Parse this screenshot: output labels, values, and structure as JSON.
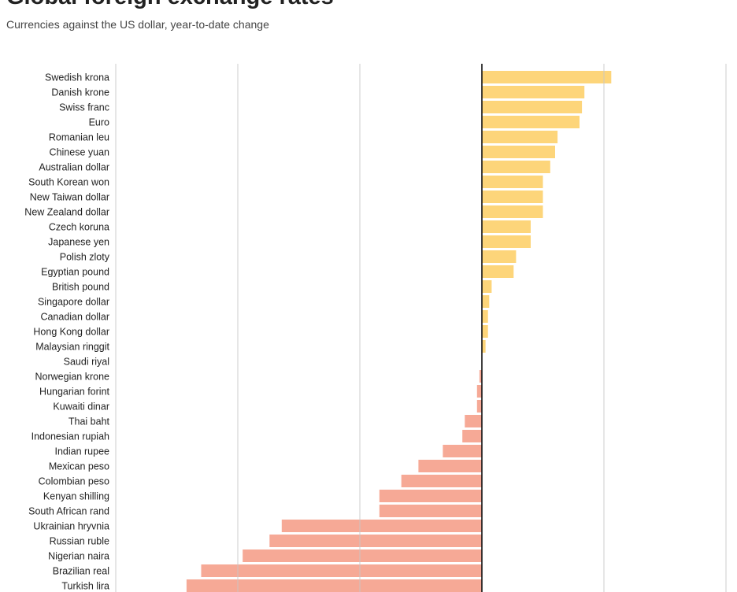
{
  "chart_data": {
    "type": "bar",
    "orientation": "horizontal",
    "title": "Global foreign exchange rates",
    "subtitle": "Currencies against the US dollar, year-to-date change",
    "xlabel": "",
    "ylabel": "",
    "xlim": [
      -15,
      10
    ],
    "gridlines": [
      -15,
      -10,
      -5,
      0,
      5,
      10
    ],
    "grid": true,
    "colors": {
      "positive": "#FDD57A",
      "negative": "#F6A996",
      "grid": "#C8C8C8",
      "zero_line": "#111111"
    },
    "categories": [
      "Swedish krona",
      "Danish krone",
      "Swiss franc",
      "Euro",
      "Romanian leu",
      "Chinese yuan",
      "Australian dollar",
      "South Korean won",
      "New Taiwan dollar",
      "New Zealand dollar",
      "Czech koruna",
      "Japanese yen",
      "Polish zloty",
      "Egyptian pound",
      "British pound",
      "Singapore dollar",
      "Canadian dollar",
      "Hong Kong dollar",
      "Malaysian ringgit",
      "Saudi riyal",
      "Norwegian krone",
      "Hungarian forint",
      "Kuwaiti dinar",
      "Thai baht",
      "Indonesian rupiah",
      "Indian rupee",
      "Mexican peso",
      "Colombian peso",
      "Kenyan shilling",
      "South African rand",
      "Ukrainian hryvnia",
      "Russian ruble",
      "Nigerian naira",
      "Brazilian real",
      "Turkish lira"
    ],
    "values": [
      5.3,
      4.2,
      4.1,
      4.0,
      3.1,
      3.0,
      2.8,
      2.5,
      2.5,
      2.5,
      2.0,
      2.0,
      1.4,
      1.3,
      0.4,
      0.3,
      0.25,
      0.25,
      0.15,
      0,
      -0.1,
      -0.2,
      -0.2,
      -0.7,
      -0.8,
      -1.6,
      -2.6,
      -3.3,
      -4.2,
      -4.2,
      -8.2,
      -8.7,
      -9.8,
      -11.5,
      -12.1
    ]
  }
}
